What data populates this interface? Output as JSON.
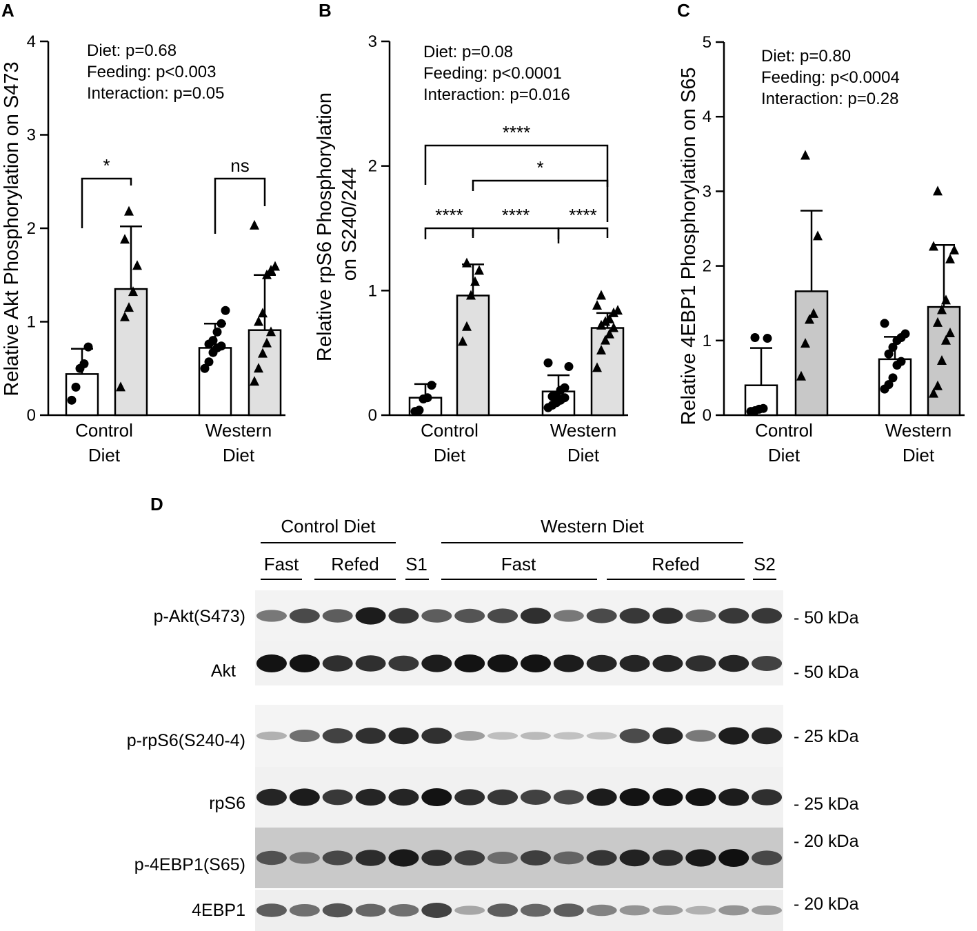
{
  "chart_data": [
    {
      "panel": "A",
      "type": "bar",
      "ylabel": "Relative Akt Phosphorylation on S473",
      "ylim": [
        0,
        4
      ],
      "yticks": [
        "0",
        "1",
        "2",
        "3",
        "4"
      ],
      "groups": [
        {
          "label": [
            "Control",
            "Diet"
          ],
          "bars": [
            {
              "mean": 0.44,
              "sd_upper": 0.71,
              "marker": "circle",
              "fill": "#ffffff",
              "points": [
                0.16,
                0.3,
                0.5,
                0.55,
                0.73
              ]
            },
            {
              "mean": 1.35,
              "sd_upper": 2.02,
              "marker": "triangle",
              "fill": "#e0e0e0",
              "points": [
                0.3,
                1.05,
                1.15,
                1.32,
                1.6,
                1.88,
                2.18
              ]
            }
          ]
        },
        {
          "label": [
            "Western",
            "Diet"
          ],
          "bars": [
            {
              "mean": 0.72,
              "sd_upper": 0.98,
              "marker": "circle",
              "fill": "#ffffff",
              "points": [
                0.5,
                0.57,
                0.67,
                0.72,
                0.74,
                0.76,
                0.8,
                0.89,
                0.98,
                1.12
              ]
            },
            {
              "mean": 0.91,
              "sd_upper": 1.5,
              "marker": "triangle",
              "fill": "#e0e0e0",
              "points": [
                0.36,
                0.5,
                0.66,
                0.77,
                0.89,
                1.0,
                1.09,
                1.5,
                1.55,
                1.59,
                2.03
              ]
            }
          ]
        }
      ],
      "stats": [
        "Diet:  p=0.68",
        "Feeding: p<0.003",
        "Interaction:  p=0.05"
      ],
      "comparisons": [
        {
          "label": "*",
          "from": [
            0,
            0
          ],
          "to": [
            0,
            1
          ]
        },
        {
          "label": "ns",
          "from": [
            1,
            0
          ],
          "to": [
            1,
            1
          ]
        }
      ]
    },
    {
      "panel": "B",
      "type": "bar",
      "ylabel": [
        "Relative rpS6 Phosphorylation",
        "on S240/244"
      ],
      "ylim": [
        0,
        3
      ],
      "yticks": [
        "0",
        "1",
        "2",
        "3"
      ],
      "groups": [
        {
          "label": [
            "Control",
            "Diet"
          ],
          "bars": [
            {
              "mean": 0.14,
              "sd_upper": 0.25,
              "marker": "circle",
              "fill": "#ffffff",
              "points": [
                0.03,
                0.04,
                0.13,
                0.14,
                0.24
              ]
            },
            {
              "mean": 0.96,
              "sd_upper": 1.21,
              "marker": "triangle",
              "fill": "#e0e0e0",
              "points": [
                0.59,
                0.71,
                0.96,
                1.07,
                1.16,
                1.22
              ]
            }
          ]
        },
        {
          "label": [
            "Western",
            "Diet"
          ],
          "bars": [
            {
              "mean": 0.19,
              "sd_upper": 0.32,
              "marker": "circle",
              "fill": "#ffffff",
              "points": [
                0.06,
                0.08,
                0.1,
                0.12,
                0.14,
                0.15,
                0.16,
                0.2,
                0.22,
                0.39,
                0.42
              ]
            },
            {
              "mean": 0.7,
              "sd_upper": 0.82,
              "marker": "triangle",
              "fill": "#e0e0e0",
              "points": [
                0.38,
                0.52,
                0.6,
                0.65,
                0.7,
                0.72,
                0.75,
                0.77,
                0.82,
                0.84,
                0.88,
                0.96
              ]
            }
          ]
        }
      ],
      "stats": [
        "Diet: p=0.08",
        "Feeding: p<0.0001",
        "Interaction: p=0.016"
      ],
      "comparisons": [
        {
          "label": "****",
          "from": [
            0,
            0
          ],
          "to": [
            1,
            1
          ]
        },
        {
          "label": "*",
          "from": [
            0,
            1
          ],
          "to": [
            1,
            1
          ]
        },
        {
          "label": "****",
          "from": [
            0,
            0
          ],
          "to": [
            0,
            1
          ]
        },
        {
          "label": "****",
          "from": [
            0,
            1
          ],
          "to": [
            1,
            0
          ]
        },
        {
          "label": "****",
          "from": [
            1,
            0
          ],
          "to": [
            1,
            1
          ]
        }
      ]
    },
    {
      "panel": "C",
      "type": "bar",
      "ylabel": "Relative 4EBP1 Phosphorylation on S65",
      "ylim": [
        0,
        5
      ],
      "yticks": [
        "0",
        "1",
        "2",
        "3",
        "4",
        "5"
      ],
      "groups": [
        {
          "label": [
            "Control",
            "Diet"
          ],
          "bars": [
            {
              "mean": 0.4,
              "sd_upper": 0.9,
              "marker": "circle",
              "fill": "#ffffff",
              "points": [
                0.05,
                0.06,
                0.08,
                0.09,
                1.03,
                1.04
              ]
            },
            {
              "mean": 1.66,
              "sd_upper": 2.74,
              "marker": "triangle",
              "fill": "#c8c8c8",
              "points": [
                0.52,
                0.96,
                1.28,
                1.36,
                2.4,
                3.48
              ]
            }
          ]
        },
        {
          "label": [
            "Western",
            "Diet"
          ],
          "bars": [
            {
              "mean": 0.75,
              "sd_upper": 1.05,
              "marker": "circle",
              "fill": "#ffffff",
              "points": [
                0.35,
                0.41,
                0.5,
                0.67,
                0.72,
                0.82,
                0.91,
                1.0,
                1.04,
                1.09,
                1.23
              ]
            },
            {
              "mean": 1.45,
              "sd_upper": 2.28,
              "marker": "triangle",
              "fill": "#c8c8c8",
              "points": [
                0.29,
                0.39,
                0.73,
                1.0,
                1.1,
                1.24,
                1.41,
                1.54,
                2.09,
                2.21,
                2.26,
                3.0
              ]
            }
          ]
        }
      ],
      "stats": [
        "Diet:  p=0.80",
        "Feeding: p<0.0004",
        "Interaction: p=0.28"
      ],
      "comparisons": []
    }
  ],
  "panel_labels": {
    "a": "A",
    "b": "B",
    "c": "C",
    "d": "D"
  },
  "blot": {
    "group_headers": [
      {
        "label": "Control Diet"
      },
      {
        "label": "Western Diet"
      }
    ],
    "subgroups": [
      {
        "label": "Fast"
      },
      {
        "label": "Refed"
      },
      {
        "label": "S1"
      },
      {
        "label": "Fast"
      },
      {
        "label": "Refed"
      },
      {
        "label": "S2"
      }
    ],
    "lane_count": 16,
    "rows": [
      {
        "label": "p-Akt(S473)",
        "size": "- 50 kDa",
        "intensities": [
          0.45,
          0.7,
          0.6,
          0.95,
          0.8,
          0.6,
          0.65,
          0.7,
          0.85,
          0.45,
          0.7,
          0.8,
          0.85,
          0.55,
          0.8,
          0.8
        ]
      },
      {
        "label": "Akt",
        "size": "- 50 kDa",
        "intensities": [
          1.0,
          1.0,
          0.85,
          0.85,
          0.8,
          0.95,
          1.0,
          1.0,
          1.0,
          0.95,
          0.9,
          0.9,
          0.9,
          0.85,
          0.9,
          0.75
        ]
      },
      {
        "label": "p-rpS6(S240-4)",
        "size": "- 25 kDa",
        "intensities": [
          0.15,
          0.5,
          0.75,
          0.85,
          0.9,
          0.85,
          0.25,
          0.08,
          0.1,
          0.06,
          0.06,
          0.7,
          0.9,
          0.45,
          0.95,
          0.9
        ]
      },
      {
        "label": "rpS6",
        "size": "- 25 kDa",
        "intensities": [
          0.9,
          0.95,
          0.8,
          0.9,
          0.9,
          1.0,
          0.85,
          0.8,
          0.75,
          0.7,
          0.95,
          1.0,
          1.0,
          1.0,
          0.95,
          0.85
        ]
      },
      {
        "label": "p-4EBP1(S65)",
        "size": "- 20 kDa",
        "intensities": [
          0.65,
          0.45,
          0.7,
          0.85,
          0.95,
          0.85,
          0.75,
          0.5,
          0.75,
          0.55,
          0.8,
          0.9,
          0.85,
          0.95,
          1.0,
          0.7
        ]
      },
      {
        "label": "4EBP1",
        "size": "- 20 kDa",
        "intensities": [
          0.6,
          0.5,
          0.65,
          0.55,
          0.5,
          0.75,
          0.2,
          0.6,
          0.55,
          0.6,
          0.4,
          0.3,
          0.25,
          0.15,
          0.3,
          0.25
        ]
      }
    ],
    "extra_marker": "- 20 kDa"
  }
}
